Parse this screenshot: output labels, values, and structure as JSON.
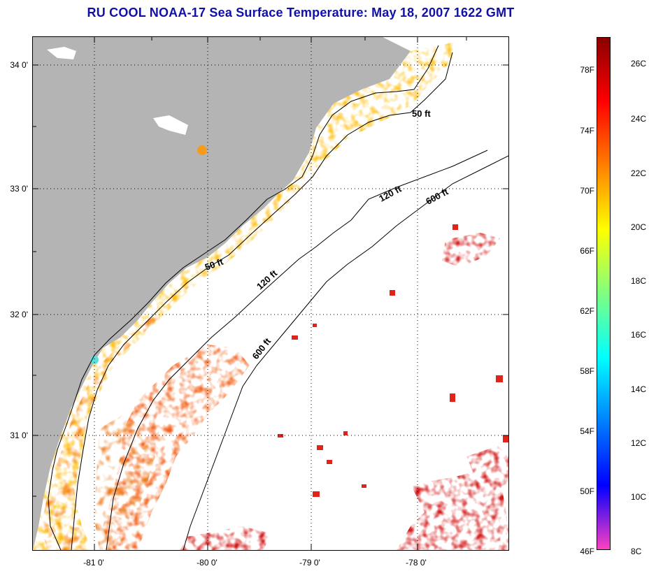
{
  "title": "RU COOL  NOAA-17  Sea Surface Temperature:  May 18, 2007 1622 GMT",
  "map": {
    "lat_ticks": [
      "34 0'",
      "33 0'",
      "32 0'",
      "31 0'"
    ],
    "lon_ticks": [
      "-81 0'",
      "-80 0'",
      "-79 0'",
      "-78 0'"
    ],
    "contour_labels": [
      "50 ft",
      "120 ft",
      "600 ft",
      "50 ft",
      "120 ft",
      "600 ft"
    ],
    "land_color": "#b4b4b4",
    "ocean_color": "#ffffff"
  },
  "colorbar": {
    "f_labels": [
      "78F",
      "74F",
      "70F",
      "66F",
      "62F",
      "58F",
      "54F",
      "50F",
      "46F"
    ],
    "c_labels": [
      "26C",
      "24C",
      "22C",
      "20C",
      "18C",
      "16C",
      "14C",
      "12C",
      "10C",
      "8C"
    ],
    "gradient_colors": [
      "#8b0000",
      "#ff0000",
      "#ff8000",
      "#ffff00",
      "#80ff80",
      "#00ffff",
      "#0080ff",
      "#0000ff",
      "#ff40c0"
    ]
  }
}
